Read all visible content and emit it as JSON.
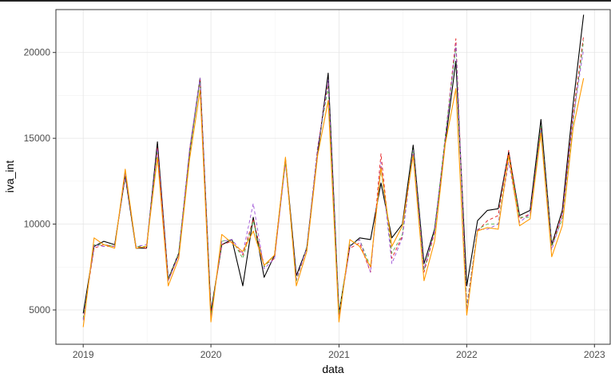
{
  "chart_data": {
    "type": "line",
    "xlabel": "data",
    "ylabel": "iva_int",
    "x_tick_labels": [
      "2019",
      "2020",
      "2021",
      "2022",
      "2023"
    ],
    "y_tick_labels": [
      "5000",
      "10000",
      "15000",
      "20000"
    ],
    "y_ticks": [
      5000,
      10000,
      15000,
      20000
    ],
    "xlim": [
      "2018-10-15",
      "2023-02-15"
    ],
    "ylim": [
      3000,
      22500
    ],
    "grid": true,
    "background": "#ffffff",
    "x": [
      "2019-01",
      "2019-02",
      "2019-03",
      "2019-04",
      "2019-05",
      "2019-06",
      "2019-07",
      "2019-08",
      "2019-09",
      "2019-10",
      "2019-11",
      "2019-12",
      "2020-01",
      "2020-02",
      "2020-03",
      "2020-04",
      "2020-05",
      "2020-06",
      "2020-07",
      "2020-08",
      "2020-09",
      "2020-10",
      "2020-11",
      "2020-12",
      "2021-01",
      "2021-02",
      "2021-03",
      "2021-04",
      "2021-05",
      "2021-06",
      "2021-07",
      "2021-08",
      "2021-09",
      "2021-10",
      "2021-11",
      "2021-12",
      "2022-01",
      "2022-02",
      "2022-03",
      "2022-04",
      "2022-05",
      "2022-06",
      "2022-07",
      "2022-08",
      "2022-09",
      "2022-10",
      "2022-11",
      "2022-12"
    ],
    "series": [
      {
        "color": "#000000",
        "dash": "solid",
        "values": [
          4800,
          8700,
          9000,
          8800,
          12800,
          8600,
          8600,
          14800,
          6800,
          8300,
          14200,
          18500,
          4900,
          8800,
          9100,
          6400,
          10400,
          6900,
          8200,
          13800,
          7000,
          8600,
          14100,
          18800,
          4800,
          8700,
          9200,
          9100,
          12400,
          9200,
          10000,
          14600,
          7700,
          9700,
          14800,
          19500,
          6400,
          10200,
          10800,
          10900,
          14200,
          10500,
          10800,
          16100,
          8800,
          10800,
          17000,
          22200
        ]
      },
      {
        "color": "#e41a1c",
        "dash": "dashed",
        "values": [
          4500,
          8600,
          8800,
          8700,
          12900,
          8700,
          8600,
          14500,
          6700,
          8200,
          14300,
          18400,
          4700,
          8800,
          9000,
          8200,
          10300,
          7600,
          8000,
          13600,
          6700,
          8600,
          14500,
          18200,
          4700,
          8600,
          8900,
          7200,
          14100,
          8000,
          9300,
          14300,
          7200,
          9500,
          15100,
          20800,
          5200,
          9600,
          10200,
          10500,
          14300,
          10300,
          10600,
          15600,
          8700,
          10600,
          16400,
          21000
        ]
      },
      {
        "color": "#4daf4a",
        "dash": "dashed",
        "values": [
          4500,
          8800,
          8800,
          8700,
          13000,
          8700,
          8700,
          14300,
          6800,
          8300,
          14200,
          18300,
          4700,
          9000,
          9100,
          8000,
          10200,
          7500,
          8200,
          13600,
          6700,
          8700,
          14400,
          18000,
          4800,
          8800,
          9100,
          7500,
          13200,
          8300,
          9400,
          14400,
          7300,
          9600,
          15200,
          20300,
          5200,
          9700,
          10000,
          10000,
          14000,
          10400,
          10400,
          15700,
          8700,
          10300,
          16000,
          20700
        ]
      },
      {
        "color": "#9c4fd6",
        "dash": "dashed",
        "values": [
          4400,
          8800,
          8700,
          8700,
          12900,
          8700,
          8800,
          14400,
          6700,
          8200,
          14400,
          18500,
          4600,
          9000,
          9100,
          8300,
          11200,
          7400,
          8000,
          13600,
          6800,
          8600,
          14400,
          18400,
          4500,
          8700,
          9100,
          7200,
          13600,
          7700,
          9200,
          14300,
          7400,
          9600,
          15000,
          20500,
          5000,
          9700,
          9700,
          10000,
          13600,
          10100,
          10600,
          15500,
          8500,
          10500,
          16200,
          20200
        ]
      },
      {
        "color": "#ff9900",
        "dash": "solid",
        "values": [
          4000,
          9200,
          8800,
          8600,
          13200,
          8600,
          8700,
          13900,
          6400,
          8000,
          13800,
          17800,
          4300,
          9400,
          8900,
          8400,
          9600,
          7600,
          8200,
          13900,
          6400,
          8400,
          14000,
          17200,
          4300,
          9100,
          8700,
          7500,
          13300,
          8700,
          9900,
          14000,
          6700,
          9000,
          14700,
          17900,
          4700,
          9600,
          9800,
          9700,
          14000,
          9900,
          10300,
          15300,
          8100,
          9900,
          15600,
          18500
        ]
      }
    ]
  }
}
